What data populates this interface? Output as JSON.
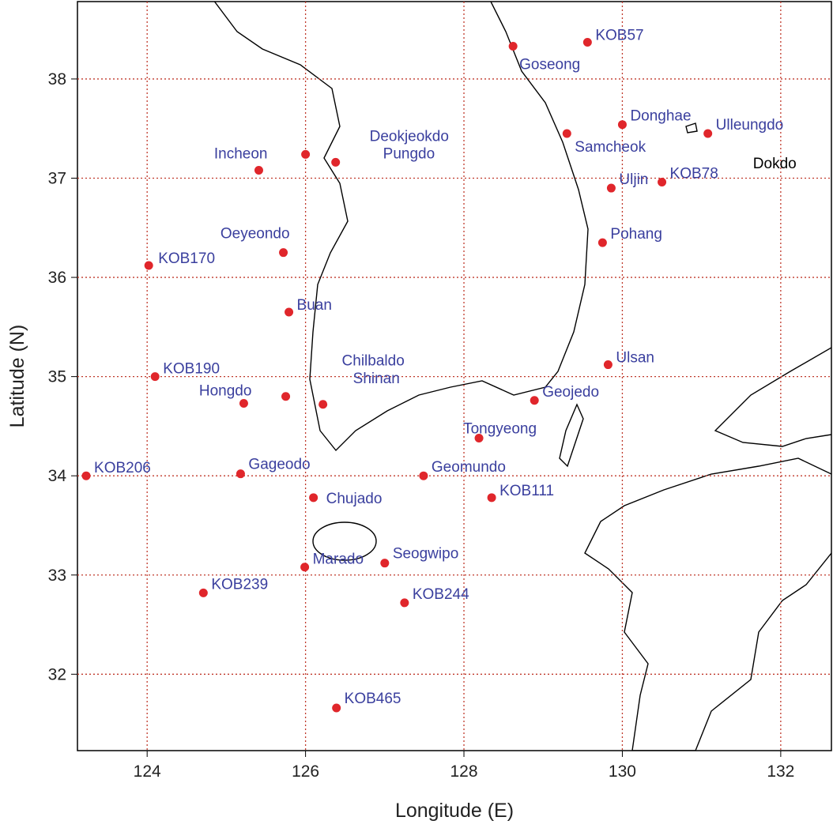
{
  "chart_data": {
    "type": "scatter",
    "x_label": "Longitude (E)",
    "y_label": "Latitude (N)",
    "xlim": [
      123.12,
      132.64
    ],
    "ylim": [
      31.23,
      38.78
    ],
    "xticks": [
      124,
      126,
      128,
      130,
      132
    ],
    "yticks": [
      32,
      33,
      34,
      35,
      36,
      37,
      38
    ],
    "grid": true,
    "grid_color": "#c0392b",
    "color": "#e0262b",
    "label_color": "#3a3f9e",
    "labels": [
      "Goseong",
      "KOB57",
      "Donghae",
      "Ulleungdo",
      "Samcheok",
      "Uljin",
      "KOB78",
      "Pohang",
      "Ulsan",
      "Geojedo",
      "Tongyeong",
      "KOB111",
      "Geomundo",
      "Seogwipo",
      "KOB244",
      "Marado",
      "KOB239",
      "KOB465",
      "Chujado",
      "Gageodo",
      "KOB206",
      "Hongdo",
      "Chilbaldo",
      "Shinan",
      "KOB190",
      "Buan",
      "KOB170",
      "Oeyeondo",
      "Incheon",
      "Deokjeokdo",
      "Pungdo"
    ],
    "x": [
      128.62,
      129.56,
      130.0,
      131.08,
      129.3,
      129.86,
      130.5,
      129.75,
      129.82,
      128.89,
      128.19,
      128.35,
      127.49,
      127.0,
      127.25,
      125.99,
      124.71,
      126.39,
      126.1,
      125.18,
      123.23,
      125.22,
      125.75,
      126.22,
      124.1,
      125.79,
      124.02,
      125.72,
      125.41,
      126.0,
      126.38
    ],
    "y": [
      38.33,
      38.37,
      37.54,
      37.45,
      37.45,
      36.9,
      36.96,
      36.35,
      35.12,
      34.76,
      34.38,
      33.78,
      34.0,
      33.12,
      32.72,
      33.08,
      32.82,
      31.66,
      33.78,
      34.02,
      34.0,
      34.73,
      34.8,
      34.72,
      35.0,
      35.65,
      36.12,
      36.25,
      37.08,
      37.24,
      37.16
    ],
    "annotations": [
      {
        "text": "Dokdo",
        "x": 131.65,
        "y": 37.1,
        "color": "#000000"
      }
    ]
  }
}
